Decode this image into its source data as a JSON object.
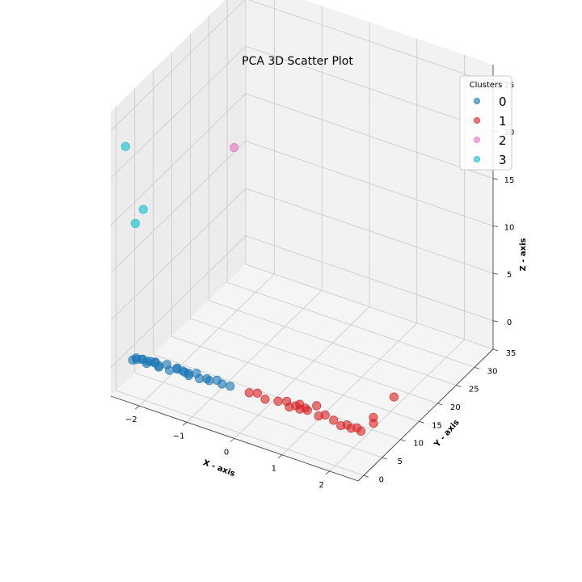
{
  "chart_data": {
    "type": "scatter",
    "projection": "3d",
    "title": "PCA 3D Scatter Plot",
    "xlabel": "X - axis",
    "ylabel": "Y - axis",
    "zlabel": "Z - axis",
    "xlim": [
      -2.6,
      2.6
    ],
    "ylim": [
      -1.5,
      35
    ],
    "zlim": [
      -3,
      27
    ],
    "xticks": [
      "−2",
      "−1",
      "0",
      "1",
      "2"
    ],
    "xtick_values": [
      -2,
      -1,
      0,
      1,
      2
    ],
    "yticks": [
      "0",
      "5",
      "10",
      "15",
      "20",
      "25",
      "30",
      "35"
    ],
    "ytick_values": [
      0,
      5,
      10,
      15,
      20,
      25,
      30,
      35
    ],
    "zticks": [
      "0",
      "5",
      "10",
      "15",
      "20",
      "25"
    ],
    "ztick_values": [
      0,
      5,
      10,
      15,
      20,
      25
    ],
    "grid": true,
    "legend": {
      "title": "Clusters",
      "placement": "top-right"
    },
    "colors": {
      "0": "#1f77b4",
      "1": "#d62728",
      "2": "#e377c2",
      "3": "#17becf"
    },
    "series": [
      {
        "name": "0",
        "color": "#1f77b4",
        "points": [
          [
            -2.35,
            1.2,
            0.2
          ],
          [
            -2.3,
            1.5,
            0.4
          ],
          [
            -2.25,
            1.0,
            0.5
          ],
          [
            -2.2,
            1.8,
            0.3
          ],
          [
            -2.15,
            1.3,
            0.6
          ],
          [
            -2.1,
            2.0,
            0.2
          ],
          [
            -2.05,
            1.1,
            0.4
          ],
          [
            -2.0,
            1.6,
            0.5
          ],
          [
            -1.95,
            2.2,
            0.3
          ],
          [
            -1.9,
            1.4,
            0.6
          ],
          [
            -1.85,
            1.9,
            0.2
          ],
          [
            -1.8,
            1.2,
            0.4
          ],
          [
            -1.7,
            2.1,
            0.5
          ],
          [
            -1.6,
            1.5,
            0.3
          ],
          [
            -1.5,
            2.3,
            0.4
          ],
          [
            -1.45,
            1.7,
            0.6
          ],
          [
            -1.4,
            2.5,
            0.2
          ],
          [
            -1.3,
            1.8,
            0.5
          ],
          [
            -1.25,
            2.2,
            0.3
          ],
          [
            -1.2,
            1.6,
            0.4
          ],
          [
            -1.1,
            2.4,
            0.5
          ],
          [
            -1.0,
            1.9,
            0.3
          ],
          [
            -0.9,
            2.6,
            0.2
          ],
          [
            -0.8,
            2.0,
            0.4
          ],
          [
            -0.7,
            2.8,
            0.3
          ],
          [
            -0.55,
            2.2,
            0.4
          ],
          [
            -0.4,
            2.5,
            0.3
          ]
        ]
      },
      {
        "name": "1",
        "color": "#d62728",
        "points": [
          [
            0.0,
            2.5,
            0.3
          ],
          [
            0.15,
            2.8,
            0.4
          ],
          [
            0.35,
            2.3,
            0.3
          ],
          [
            0.6,
            2.6,
            0.4
          ],
          [
            0.75,
            3.0,
            0.5
          ],
          [
            0.85,
            2.4,
            0.3
          ],
          [
            0.95,
            2.9,
            0.4
          ],
          [
            1.0,
            3.3,
            0.5
          ],
          [
            1.05,
            2.7,
            0.3
          ],
          [
            1.1,
            3.5,
            0.2
          ],
          [
            1.2,
            2.8,
            0.4
          ],
          [
            1.3,
            4.0,
            0.6
          ],
          [
            1.45,
            2.6,
            0.3
          ],
          [
            1.55,
            3.1,
            0.4
          ],
          [
            1.75,
            2.8,
            0.3
          ],
          [
            1.95,
            2.2,
            0.3
          ],
          [
            2.05,
            2.6,
            0.4
          ],
          [
            2.15,
            2.4,
            0.3
          ],
          [
            2.25,
            2.7,
            0.4
          ],
          [
            2.35,
            2.5,
            0.3
          ],
          [
            2.45,
            4.6,
            0.5
          ],
          [
            2.4,
            5.2,
            0.8
          ],
          [
            2.5,
            9.5,
            1.5
          ]
        ]
      },
      {
        "name": "2",
        "color": "#e377c2",
        "points": [
          [
            -2.3,
            28.0,
            12.5
          ]
        ]
      },
      {
        "name": "3",
        "color": "#17becf",
        "points": [
          [
            -2.6,
            2.5,
            21.8
          ],
          [
            -2.5,
            6.0,
            14.0
          ],
          [
            -2.55,
            4.5,
            13.0
          ]
        ]
      }
    ]
  }
}
